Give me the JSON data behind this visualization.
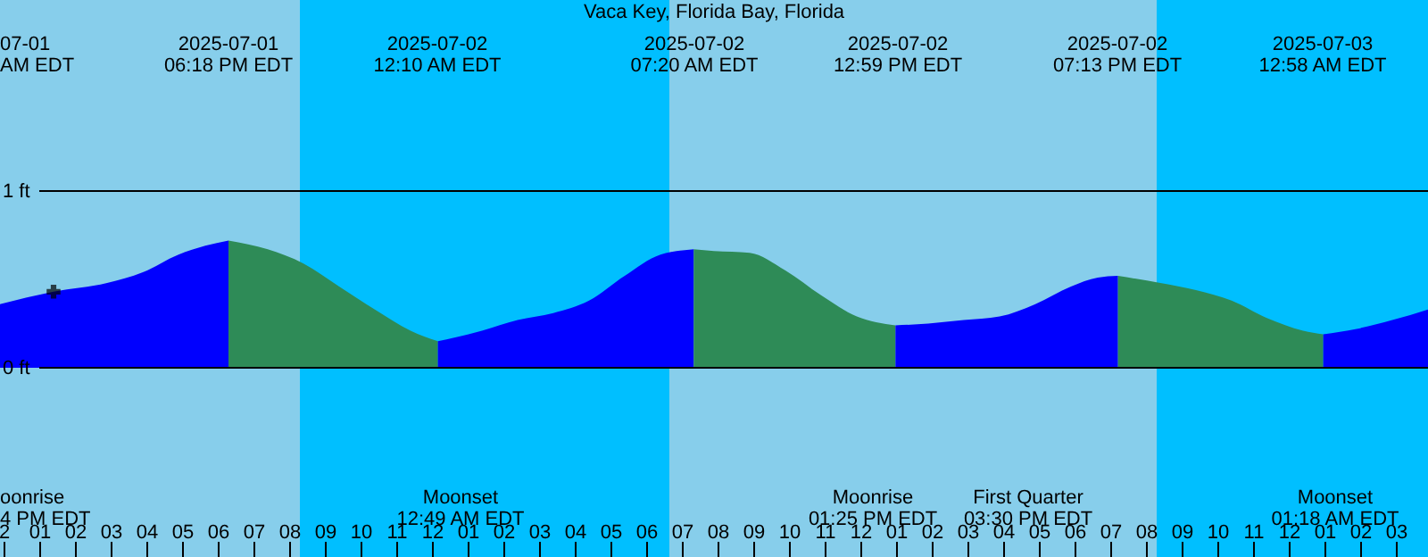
{
  "chart_data": {
    "type": "area",
    "title": "Vaca Key, Florida Bay, Florida",
    "xlim": [
      "2025-07-01T11:54",
      "2025-07-03T03:54"
    ],
    "xticks": [
      {
        "value": "2025-07-01T12:00",
        "label": "2"
      },
      {
        "value": "2025-07-01T13:00",
        "label": "01"
      },
      {
        "value": "2025-07-01T14:00",
        "label": "02"
      },
      {
        "value": "2025-07-01T15:00",
        "label": "03"
      },
      {
        "value": "2025-07-01T16:00",
        "label": "04"
      },
      {
        "value": "2025-07-01T17:00",
        "label": "05"
      },
      {
        "value": "2025-07-01T18:00",
        "label": "06"
      },
      {
        "value": "2025-07-01T19:00",
        "label": "07"
      },
      {
        "value": "2025-07-01T20:00",
        "label": "08"
      },
      {
        "value": "2025-07-01T21:00",
        "label": "09"
      },
      {
        "value": "2025-07-01T22:00",
        "label": "10"
      },
      {
        "value": "2025-07-01T23:00",
        "label": "11"
      },
      {
        "value": "2025-07-02T00:00",
        "label": "12"
      },
      {
        "value": "2025-07-02T01:00",
        "label": "01"
      },
      {
        "value": "2025-07-02T02:00",
        "label": "02"
      },
      {
        "value": "2025-07-02T03:00",
        "label": "03"
      },
      {
        "value": "2025-07-02T04:00",
        "label": "04"
      },
      {
        "value": "2025-07-02T05:00",
        "label": "05"
      },
      {
        "value": "2025-07-02T06:00",
        "label": "06"
      },
      {
        "value": "2025-07-02T07:00",
        "label": "07"
      },
      {
        "value": "2025-07-02T08:00",
        "label": "08"
      },
      {
        "value": "2025-07-02T09:00",
        "label": "09"
      },
      {
        "value": "2025-07-02T10:00",
        "label": "10"
      },
      {
        "value": "2025-07-02T11:00",
        "label": "11"
      },
      {
        "value": "2025-07-02T12:00",
        "label": "12"
      },
      {
        "value": "2025-07-02T13:00",
        "label": "01"
      },
      {
        "value": "2025-07-02T14:00",
        "label": "02"
      },
      {
        "value": "2025-07-02T15:00",
        "label": "03"
      },
      {
        "value": "2025-07-02T16:00",
        "label": "04"
      },
      {
        "value": "2025-07-02T17:00",
        "label": "05"
      },
      {
        "value": "2025-07-02T18:00",
        "label": "06"
      },
      {
        "value": "2025-07-02T19:00",
        "label": "07"
      },
      {
        "value": "2025-07-02T20:00",
        "label": "08"
      },
      {
        "value": "2025-07-02T21:00",
        "label": "09"
      },
      {
        "value": "2025-07-02T22:00",
        "label": "10"
      },
      {
        "value": "2025-07-02T23:00",
        "label": "11"
      },
      {
        "value": "2025-07-03T00:00",
        "label": "12"
      },
      {
        "value": "2025-07-03T01:00",
        "label": "01"
      },
      {
        "value": "2025-07-03T02:00",
        "label": "02"
      },
      {
        "value": "2025-07-03T03:00",
        "label": "03"
      }
    ],
    "ylim": [
      -1.07,
      2.08
    ],
    "yticks": [
      {
        "value": 0,
        "label": "0 ft"
      },
      {
        "value": 1,
        "label": "1 ft"
      }
    ],
    "grid": "y",
    "series": [
      {
        "color": "#0000ff",
        "x": [
          "2025-07-01T11:54",
          "2025-07-01T13:24",
          "2025-07-01T14:54",
          "2025-07-01T15:54",
          "2025-07-01T16:54",
          "2025-07-01T17:39",
          "2025-07-01T18:18"
        ],
        "values": [
          0.36,
          0.43,
          0.48,
          0.54,
          0.64,
          0.69,
          0.72
        ]
      },
      {
        "color": "#2e8b57",
        "x": [
          "2025-07-01T18:18",
          "2025-07-01T19:24",
          "2025-07-01T20:24",
          "2025-07-01T21:24",
          "2025-07-01T22:24",
          "2025-07-01T23:24",
          "2025-07-02T00:10"
        ],
        "values": [
          0.72,
          0.67,
          0.59,
          0.46,
          0.33,
          0.21,
          0.15
        ]
      },
      {
        "color": "#0000ff",
        "x": [
          "2025-07-02T00:10",
          "2025-07-02T01:24",
          "2025-07-02T02:24",
          "2025-07-02T03:24",
          "2025-07-02T04:24",
          "2025-07-02T05:24",
          "2025-07-02T06:24",
          "2025-07-02T07:20"
        ],
        "values": [
          0.15,
          0.21,
          0.27,
          0.31,
          0.38,
          0.52,
          0.64,
          0.67
        ]
      },
      {
        "color": "#2e8b57",
        "x": [
          "2025-07-02T07:20",
          "2025-07-02T07:54",
          "2025-07-02T08:54",
          "2025-07-02T09:54",
          "2025-07-02T10:54",
          "2025-07-02T11:54",
          "2025-07-02T12:59"
        ],
        "values": [
          0.67,
          0.66,
          0.65,
          0.55,
          0.41,
          0.29,
          0.24
        ]
      },
      {
        "color": "#0000ff",
        "x": [
          "2025-07-02T12:59",
          "2025-07-02T13:54",
          "2025-07-02T14:54",
          "2025-07-02T15:54",
          "2025-07-02T16:54",
          "2025-07-02T17:54",
          "2025-07-02T18:39",
          "2025-07-02T19:13"
        ],
        "values": [
          0.24,
          0.25,
          0.27,
          0.29,
          0.36,
          0.46,
          0.51,
          0.52
        ]
      },
      {
        "color": "#2e8b57",
        "x": [
          "2025-07-02T19:13",
          "2025-07-02T20:24",
          "2025-07-02T21:24",
          "2025-07-02T22:24",
          "2025-07-02T23:24",
          "2025-07-03T00:24",
          "2025-07-03T00:58"
        ],
        "values": [
          0.52,
          0.48,
          0.44,
          0.38,
          0.28,
          0.21,
          0.19
        ]
      },
      {
        "color": "#0000ff",
        "x": [
          "2025-07-03T00:58",
          "2025-07-03T01:54",
          "2025-07-03T02:54",
          "2025-07-03T03:54"
        ],
        "values": [
          0.19,
          0.22,
          0.27,
          0.33
        ]
      },
      {
        "type": "scatter",
        "marker": "cross",
        "color": "#000000",
        "x": [
          "2025-07-01T13:24"
        ],
        "values": [
          0.43
        ]
      }
    ],
    "bands": [
      {
        "axis": "x",
        "from": "2025-07-01T11:54",
        "to": "2025-07-01T20:18",
        "color": "#87ceeb"
      },
      {
        "axis": "x",
        "from": "2025-07-01T20:18",
        "to": "2025-07-02T06:39",
        "color": "#00bfff"
      },
      {
        "axis": "x",
        "from": "2025-07-02T06:39",
        "to": "2025-07-02T20:18",
        "color": "#87ceeb"
      },
      {
        "axis": "x",
        "from": "2025-07-02T20:18",
        "to": "2025-07-03T03:54",
        "color": "#00bfff"
      }
    ],
    "annotations": [
      "07-01\nAM EDT",
      "2025-07-01\n06:18 PM EDT",
      "2025-07-02\n12:10 AM EDT",
      "2025-07-02\n07:20 AM EDT",
      "2025-07-02\n12:59 PM EDT",
      "2025-07-02\n07:13 PM EDT",
      "2025-07-03\n12:58 AM EDT",
      "oonrise\n4 PM EDT",
      "Moonset\n12:49 AM EDT",
      "Moonrise\n01:25 PM EDT",
      "First Quarter\n03:30 PM EDT",
      "Moonset\n01:18 AM EDT"
    ]
  }
}
